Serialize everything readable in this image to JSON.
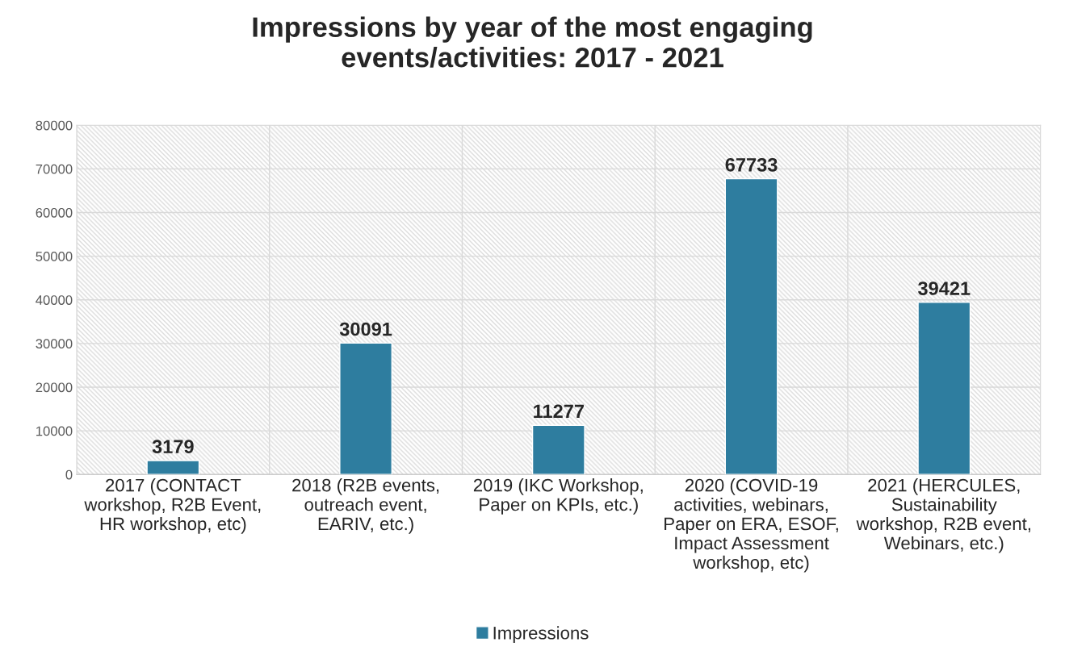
{
  "chart_data": {
    "type": "bar",
    "title": "Impressions by year of the most engaging\nevents/activities: 2017 - 2021",
    "categories": [
      "2017 (CONTACT\nworkshop, R2B Event,\nHR workshop, etc)",
      "2018 (R2B events,\noutreach event,\nEARIV, etc.)",
      "2019 (IKC Workshop,\nPaper on KPIs, etc.)",
      "2020 (COVID-19\nactivities, webinars,\nPaper on ERA, ESOF,\nImpact Assessment\nworkshop, etc)",
      "2021 (HERCULES,\nSustainability\nworkshop, R2B event,\nWebinars, etc.)"
    ],
    "series": [
      {
        "name": "Impressions",
        "color": "#2e7d9f",
        "values": [
          3179,
          30091,
          11277,
          67733,
          39421
        ]
      }
    ],
    "ylim": [
      0,
      80000
    ],
    "yticks": [
      0,
      10000,
      20000,
      30000,
      40000,
      50000,
      60000,
      70000,
      80000
    ],
    "grid": true,
    "legend": "bottom",
    "data_labels": true
  }
}
